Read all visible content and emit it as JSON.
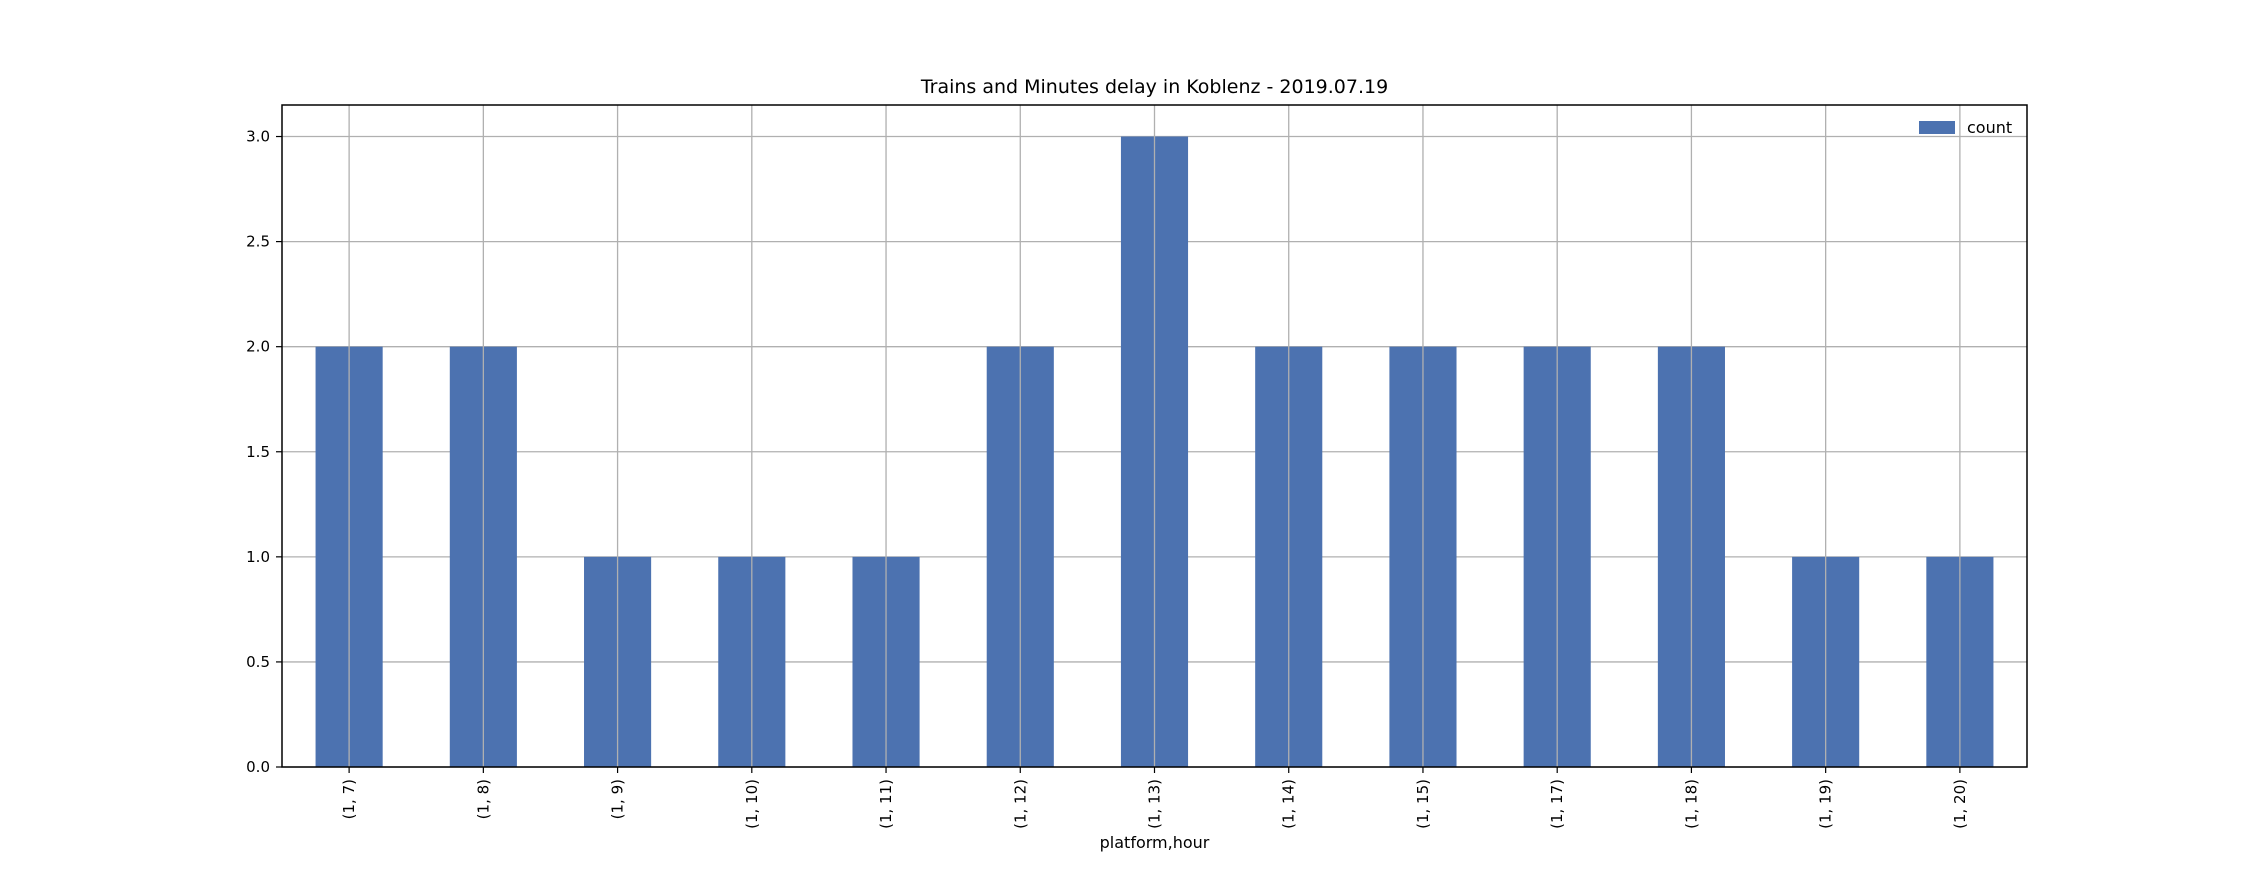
{
  "chart_data": {
    "type": "bar",
    "title": "Trains and Minutes delay in Koblenz - 2019.07.19",
    "xlabel": "platform,hour",
    "ylabel": "",
    "categories": [
      "(1, 7)",
      "(1, 8)",
      "(1, 9)",
      "(1, 10)",
      "(1, 11)",
      "(1, 12)",
      "(1, 13)",
      "(1, 14)",
      "(1, 15)",
      "(1, 17)",
      "(1, 18)",
      "(1, 19)",
      "(1, 20)"
    ],
    "series": [
      {
        "name": "count",
        "values": [
          2,
          2,
          1,
          1,
          1,
          2,
          3,
          2,
          2,
          2,
          2,
          1,
          1
        ]
      }
    ],
    "ylim": [
      0,
      3.15
    ],
    "yticks": [
      "0.0",
      "0.5",
      "1.0",
      "1.5",
      "2.0",
      "2.5",
      "3.0"
    ],
    "grid": true,
    "legend": "top-right",
    "bar_color": "#4c72b0",
    "grid_color": "#b0b0b0"
  }
}
